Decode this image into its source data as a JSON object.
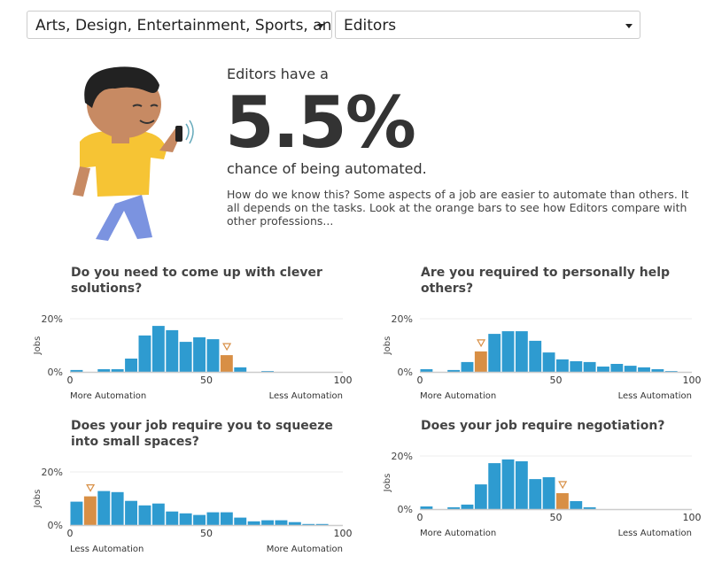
{
  "selectors": {
    "category": "Arts, Design, Entertainment, Sports, and Media",
    "occupation": "Editors"
  },
  "headline": {
    "intro": "Editors have a",
    "percent": "5.5%",
    "outro": "chance of being automated.",
    "description": "How do we know this? Some aspects of a job are easier to automate than others. It all depends on the tasks. Look at the orange bars to see how Editors compare with other professions..."
  },
  "colors": {
    "bar": "#2e9bd0",
    "highlight": "#d88f45"
  },
  "chart_data": [
    {
      "type": "bar",
      "title": "Do you need to come up with clever solutions?",
      "ylabel": "Jobs",
      "yticks": [
        "0%",
        "20%"
      ],
      "xticks": [
        "0",
        "50",
        "100"
      ],
      "left_label": "More Automation",
      "right_label": "Less Automation",
      "bin_width": 5,
      "highlight_bin": 11,
      "values": [
        0.7,
        0,
        1,
        1,
        5,
        13.7,
        17.3,
        15.7,
        11.3,
        13,
        12.3,
        6.3,
        1.7,
        0,
        0.3,
        0,
        0,
        0,
        0,
        0
      ]
    },
    {
      "type": "bar",
      "title": "Are you required to personally help others?",
      "ylabel": "Jobs",
      "yticks": [
        "0%",
        "20%"
      ],
      "xticks": [
        "0",
        "50",
        "100"
      ],
      "left_label": "More Automation",
      "right_label": "Less Automation",
      "bin_width": 5,
      "highlight_bin": 4,
      "values": [
        1,
        0,
        0.7,
        3.7,
        7.7,
        14.3,
        15.3,
        15.3,
        11.7,
        7.3,
        4.7,
        4,
        3.7,
        2,
        3,
        2.3,
        1.7,
        1,
        0.3,
        0
      ]
    },
    {
      "type": "bar",
      "title": "Does your job require you to squeeze into small spaces?",
      "ylabel": "Jobs",
      "yticks": [
        "0%",
        "20%"
      ],
      "xticks": [
        "0",
        "50",
        "100"
      ],
      "left_label": "Less Automation",
      "right_label": "More Automation",
      "bin_width": 5,
      "highlight_bin": 1,
      "values": [
        8.8,
        10.8,
        12.8,
        12.4,
        9.1,
        7.4,
        8.1,
        5.1,
        4.4,
        3.8,
        4.8,
        4.8,
        2.8,
        1.4,
        1.8,
        1.8,
        1.1,
        0.4,
        0.4,
        0
      ]
    },
    {
      "type": "bar",
      "title": "Does your job require negotiation?",
      "ylabel": "Jobs",
      "yticks": [
        "0%",
        "20%"
      ],
      "xticks": [
        "0",
        "50",
        "100"
      ],
      "left_label": "More Automation",
      "right_label": "Less Automation",
      "bin_width": 5,
      "highlight_bin": 10,
      "values": [
        1,
        0,
        0.7,
        1.7,
        9.3,
        17.3,
        18.7,
        18,
        11.3,
        12,
        6,
        3,
        0.7,
        0,
        0,
        0,
        0,
        0,
        0,
        0
      ]
    }
  ]
}
